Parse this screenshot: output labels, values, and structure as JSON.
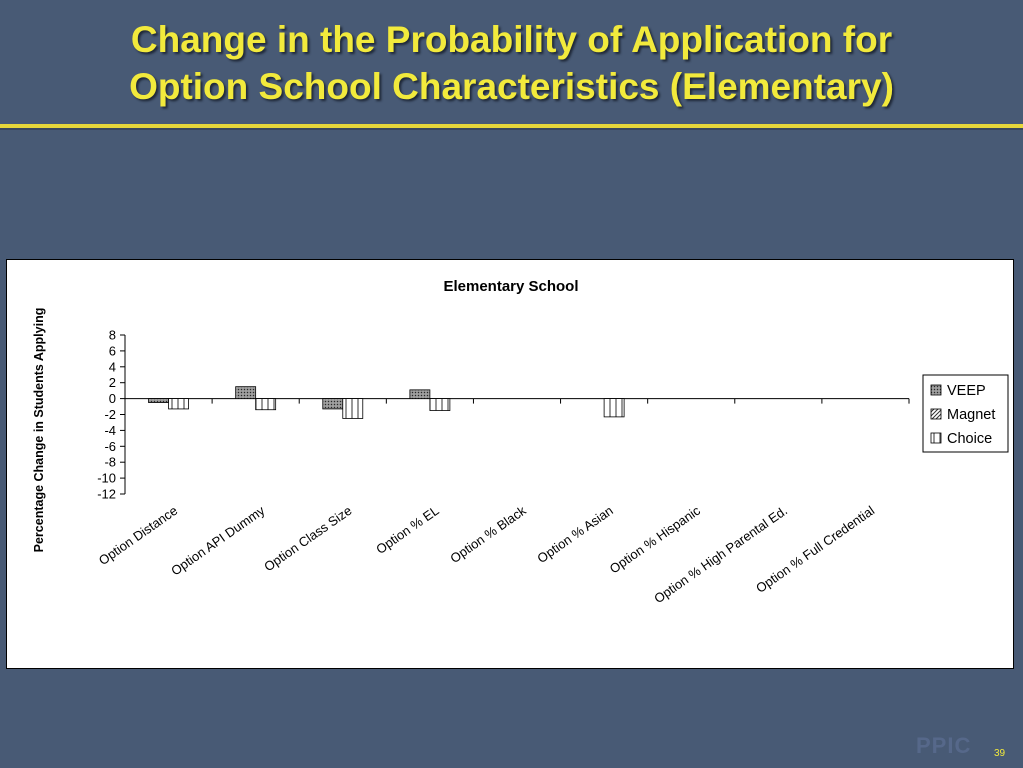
{
  "slide": {
    "title_line1": "Change in the Probability of Application for",
    "title_line2": "Option School Characteristics (Elementary)",
    "logo_text": "PPIC",
    "page_number": "39"
  },
  "colors": {
    "background": "#485a75",
    "title": "#f2ea3c",
    "rule": "#e6d73a"
  },
  "chart_data": {
    "type": "bar",
    "title": "Elementary School",
    "xlabel": "",
    "ylabel": "Percentage Change in Students Applying",
    "ylim": [
      -12,
      8
    ],
    "yticks": [
      8,
      6,
      4,
      2,
      0,
      -2,
      -4,
      -6,
      -8,
      -10,
      -12
    ],
    "grid": false,
    "legend_position": "right",
    "categories": [
      "Option Distance",
      "Option API Dummy",
      "Option Class Size",
      "Option % EL",
      "Option % Black",
      "Option % Asian",
      "Option % Hispanic",
      "Option % High Parental Ed.",
      "Option % Full Credential"
    ],
    "series": [
      {
        "name": "VEEP",
        "pattern": "dots",
        "values": [
          -0.5,
          1.5,
          -1.3,
          1.1,
          0,
          0,
          0,
          0,
          0
        ]
      },
      {
        "name": "Magnet",
        "pattern": "diagonal",
        "values": [
          0,
          0,
          0,
          0,
          0,
          0,
          0,
          0,
          0
        ]
      },
      {
        "name": "Choice",
        "pattern": "vertical",
        "values": [
          -1.3,
          -1.4,
          -2.5,
          -1.5,
          0,
          -2.3,
          0,
          0,
          0
        ]
      }
    ]
  }
}
